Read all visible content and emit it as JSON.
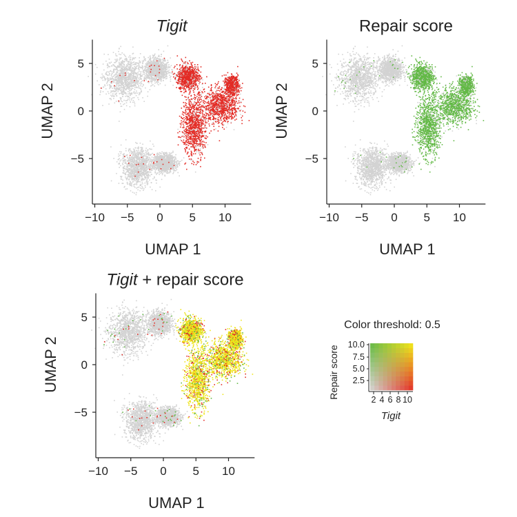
{
  "chart_data": [
    {
      "type": "scatter",
      "title": "Tigit",
      "title_italic": true,
      "xlabel": "UMAP 1",
      "ylabel": "UMAP 2",
      "xticks": [
        "−10",
        "−5",
        "0",
        "5",
        "10"
      ],
      "xtick_values": [
        -10,
        -5,
        0,
        5,
        10
      ],
      "yticks": [
        "5",
        "0",
        "−5"
      ],
      "ytick_values": [
        5,
        0,
        -5
      ],
      "xlim": [
        -10.5,
        14
      ],
      "ylim": [
        -9.5,
        7.5
      ],
      "colors": {
        "negative": "#d3d3d3",
        "positive": "#e32b25"
      },
      "mode": "tigit"
    },
    {
      "type": "scatter",
      "title": "Repair score",
      "title_italic": false,
      "xlabel": "UMAP 1",
      "ylabel": "UMAP 2",
      "xticks": [
        "−10",
        "−5",
        "0",
        "5",
        "10"
      ],
      "xtick_values": [
        -10,
        -5,
        0,
        5,
        10
      ],
      "yticks": [
        "5",
        "0",
        "−5"
      ],
      "ytick_values": [
        5,
        0,
        -5
      ],
      "xlim": [
        -10.5,
        14
      ],
      "ylim": [
        -9.5,
        7.5
      ],
      "colors": {
        "negative": "#d3d3d3",
        "positive": "#63b946"
      },
      "mode": "repair"
    },
    {
      "type": "scatter",
      "title_italic_part": "Tigit",
      "title_rest": " + repair score",
      "xlabel": "UMAP 1",
      "ylabel": "UMAP 2",
      "xticks": [
        "−10",
        "−5",
        "0",
        "5",
        "10"
      ],
      "xtick_values": [
        -10,
        -5,
        0,
        5,
        10
      ],
      "yticks": [
        "5",
        "0",
        "−5"
      ],
      "ytick_values": [
        5,
        0,
        -5
      ],
      "xlim": [
        -10.5,
        14
      ],
      "ylim": [
        -9.5,
        7.5
      ],
      "colors": {
        "negative": "#d3d3d3",
        "tigit_only": "#e32b25",
        "repair_only": "#63b946",
        "both": "#eee41c"
      },
      "mode": "blend"
    }
  ],
  "clusters_approx": [
    {
      "center": [
        -5.5,
        3.5
      ],
      "spread": [
        3.3,
        2.5
      ],
      "expr": "none"
    },
    {
      "center": [
        -0.6,
        4.4
      ],
      "spread": [
        2.0,
        1.3
      ],
      "expr": "none"
    },
    {
      "center": [
        -3.5,
        -5.8
      ],
      "spread": [
        2.7,
        2.2
      ],
      "expr": "none"
    },
    {
      "center": [
        0.6,
        -5.4
      ],
      "spread": [
        2.0,
        1.0
      ],
      "expr": "none"
    },
    {
      "center": [
        4.2,
        3.6
      ],
      "spread": [
        1.8,
        1.4
      ],
      "expr": "high"
    },
    {
      "center": [
        5.2,
        -1.6
      ],
      "spread": [
        2.0,
        3.6
      ],
      "expr": "high"
    },
    {
      "center": [
        9.3,
        0.6
      ],
      "spread": [
        3.0,
        2.0
      ],
      "expr": "high"
    },
    {
      "center": [
        11.0,
        2.8
      ],
      "spread": [
        1.0,
        1.0
      ],
      "expr": "high"
    }
  ],
  "legend": {
    "title": "Color threshold: 0.5",
    "ylabel": "Repair score",
    "xlabel": "Tigit",
    "yticks": [
      "10.0",
      "7.5",
      "5.0",
      "2.5"
    ],
    "xticks": [
      "2",
      "4",
      "6",
      "8",
      "10"
    ],
    "corner_colors": {
      "low_low": "#d6d6d6",
      "high_tigit": "#e32b25",
      "high_repair": "#63b946",
      "high_both": "#f6ea1a"
    }
  }
}
